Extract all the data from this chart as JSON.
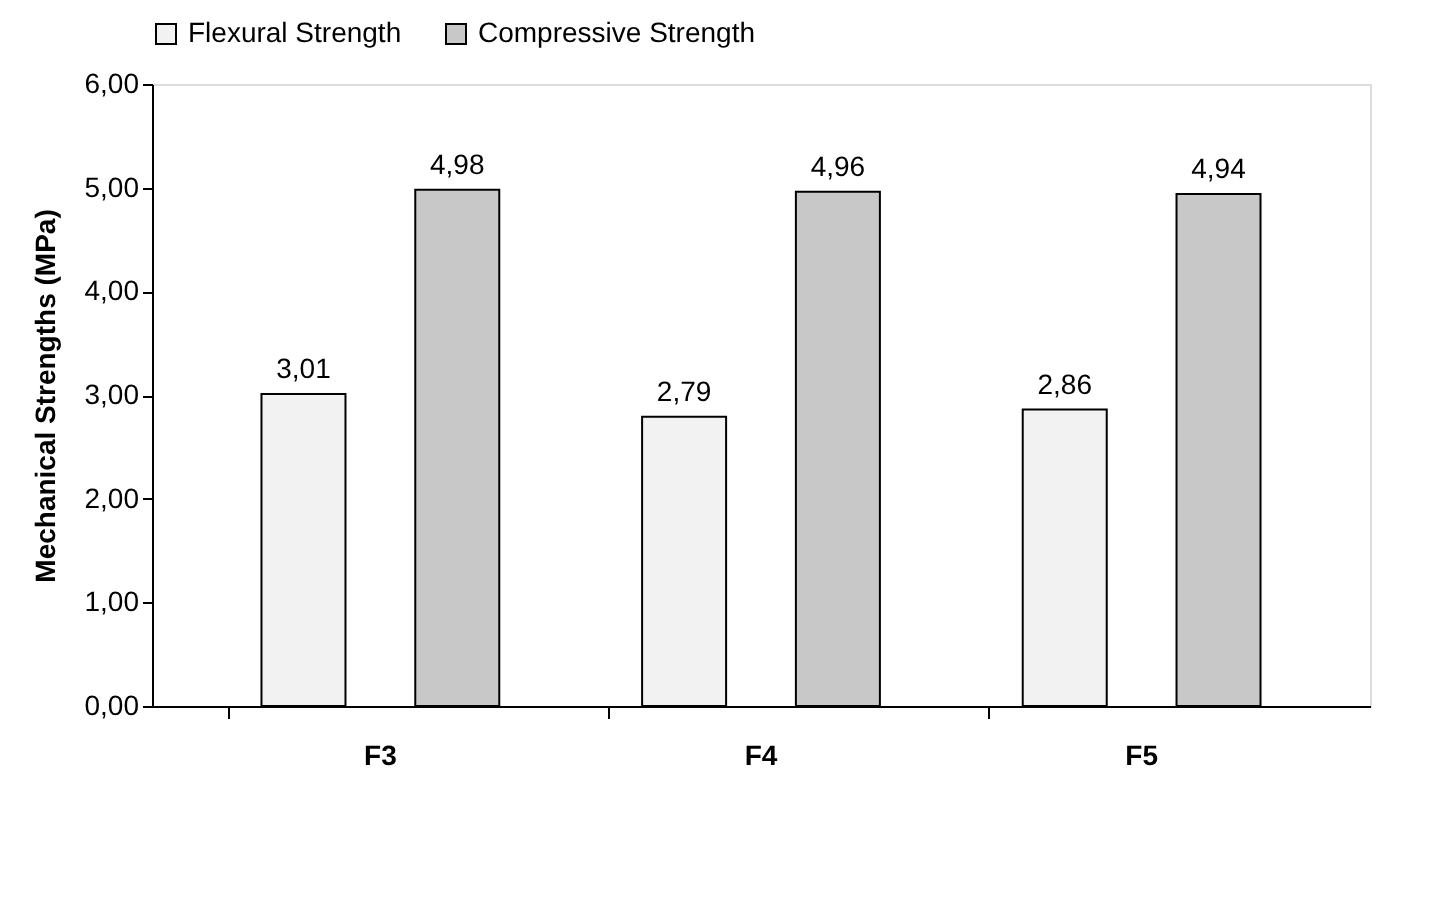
{
  "chart_data": {
    "type": "bar",
    "ylabel": "Mechanical Strengths (MPa)",
    "categories": [
      "F3",
      "F4",
      "F5"
    ],
    "series": [
      {
        "name": "Flexural Strength",
        "color": "#f2f2f2",
        "values": [
          3.01,
          2.79,
          2.86
        ],
        "value_labels": [
          "3,01",
          "2,79",
          "2,86"
        ]
      },
      {
        "name": "Compressive Strength",
        "color": "#c8c8c8",
        "values": [
          4.98,
          4.96,
          4.94
        ],
        "value_labels": [
          "4,98",
          "4,96",
          "4,94"
        ]
      }
    ],
    "ylim": [
      0,
      6
    ],
    "yticks": [
      {
        "value": 0,
        "label": "0,00"
      },
      {
        "value": 1,
        "label": "1,00"
      },
      {
        "value": 2,
        "label": "2,00"
      },
      {
        "value": 3,
        "label": "3,00"
      },
      {
        "value": 4,
        "label": "4,00"
      },
      {
        "value": 5,
        "label": "5,00"
      },
      {
        "value": 6,
        "label": "6,00"
      }
    ],
    "grid": false,
    "legend": "top"
  }
}
